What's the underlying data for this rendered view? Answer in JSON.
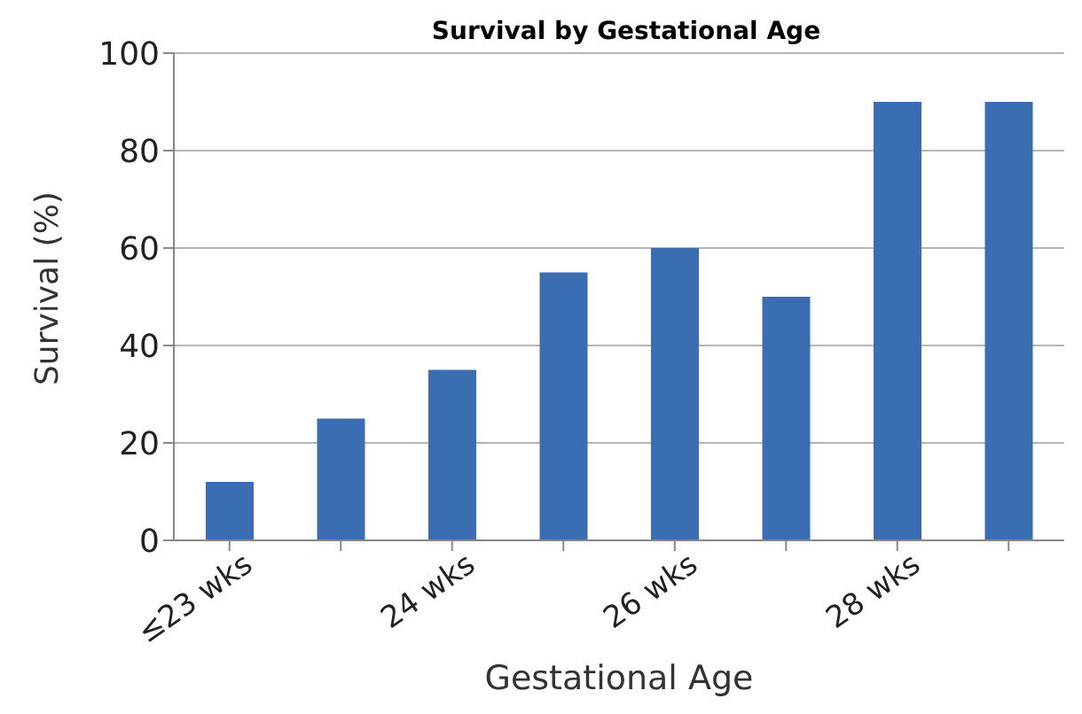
{
  "chart_data": {
    "type": "bar",
    "title": "Survival by Gestational Age",
    "xlabel": "Gestational Age",
    "ylabel": "Survival (%)",
    "categories": [
      "≤23 wks",
      null,
      "24 wks",
      null,
      "26 wks",
      null,
      "28 wks",
      null
    ],
    "values": [
      12,
      25,
      35,
      55,
      60,
      50,
      90,
      90
    ],
    "color": "#3b6db3",
    "ylim": [
      0,
      100
    ],
    "yticks": [
      0,
      20,
      40,
      60,
      80,
      100
    ],
    "grid": "y"
  }
}
